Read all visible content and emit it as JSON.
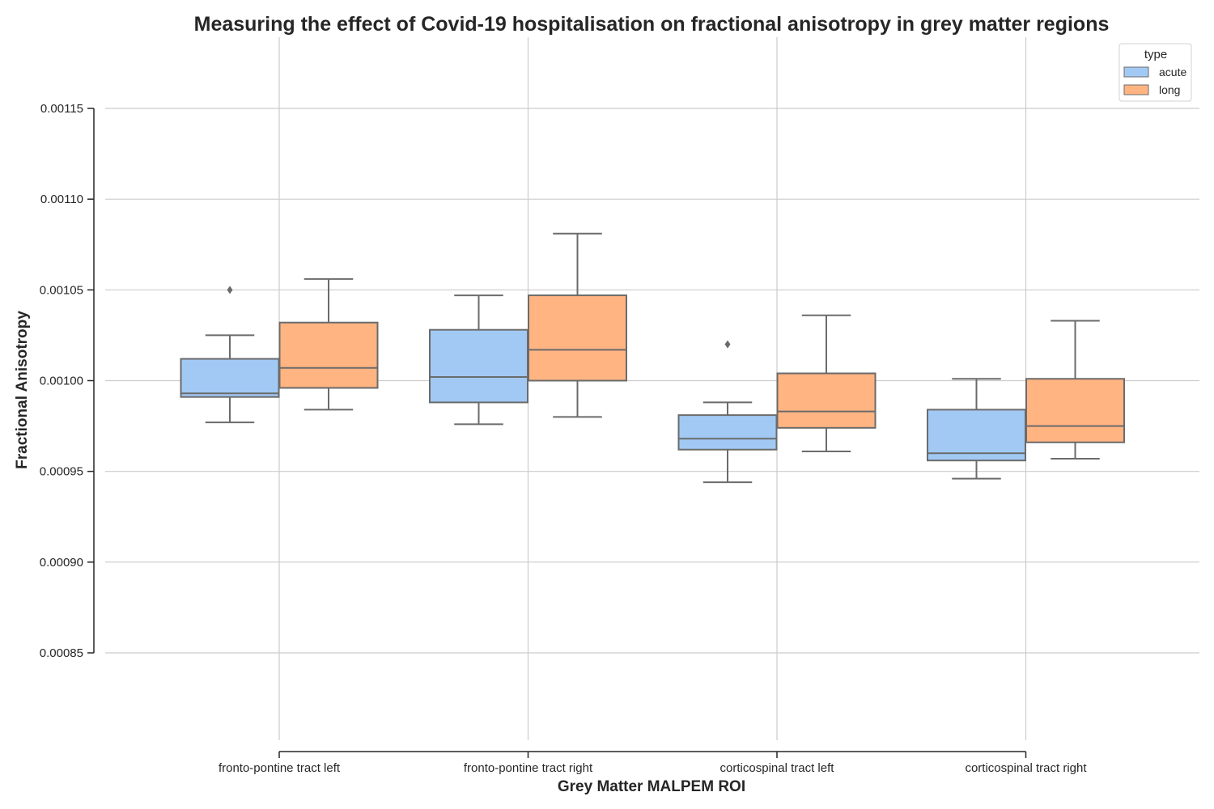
{
  "chart_data": {
    "type": "boxplot",
    "title": "Measuring the effect of Covid-19 hospitalisation on fractional anisotropy in grey matter regions",
    "xlabel": "Grey Matter MALPEM ROI",
    "ylabel": "Fractional Anisotropy",
    "categories": [
      "fronto-pontine tract left",
      "fronto-pontine tract right",
      "corticospinal tract left",
      "corticospinal tract right"
    ],
    "y_ticks": [
      0.00085,
      0.0009,
      0.00095,
      0.001,
      0.00105,
      0.0011,
      0.00115
    ],
    "y_tick_labels": [
      "0.00085",
      "0.00090",
      "0.00095",
      "0.00100",
      "0.00105",
      "0.00110",
      "0.00115"
    ],
    "ylim": [
      0.0008,
      0.00119
    ],
    "grid": true,
    "legend": {
      "title": "type",
      "placement": "top-right"
    },
    "series": [
      {
        "name": "acute",
        "color": "#a1c9f4",
        "boxes": [
          {
            "whislo": 0.000977,
            "q1": 0.000991,
            "med": 0.000993,
            "q3": 0.001012,
            "whishi": 0.001025,
            "fliers": [
              0.00105
            ]
          },
          {
            "whislo": 0.000976,
            "q1": 0.000988,
            "med": 0.001002,
            "q3": 0.001028,
            "whishi": 0.001047,
            "fliers": []
          },
          {
            "whislo": 0.000944,
            "q1": 0.000962,
            "med": 0.000968,
            "q3": 0.000981,
            "whishi": 0.000988,
            "fliers": [
              0.00102
            ]
          },
          {
            "whislo": 0.000946,
            "q1": 0.000956,
            "med": 0.00096,
            "q3": 0.000984,
            "whishi": 0.001001,
            "fliers": []
          }
        ]
      },
      {
        "name": "long",
        "color": "#ffb482",
        "boxes": [
          {
            "whislo": 0.000984,
            "q1": 0.000996,
            "med": 0.001007,
            "q3": 0.001032,
            "whishi": 0.001056,
            "fliers": []
          },
          {
            "whislo": 0.00098,
            "q1": 0.001,
            "med": 0.001017,
            "q3": 0.001047,
            "whishi": 0.001081,
            "fliers": []
          },
          {
            "whislo": 0.000961,
            "q1": 0.000974,
            "med": 0.000983,
            "q3": 0.001004,
            "whishi": 0.001036,
            "fliers": []
          },
          {
            "whislo": 0.000957,
            "q1": 0.000966,
            "med": 0.000975,
            "q3": 0.001001,
            "whishi": 0.001033,
            "fliers": []
          }
        ]
      }
    ]
  }
}
